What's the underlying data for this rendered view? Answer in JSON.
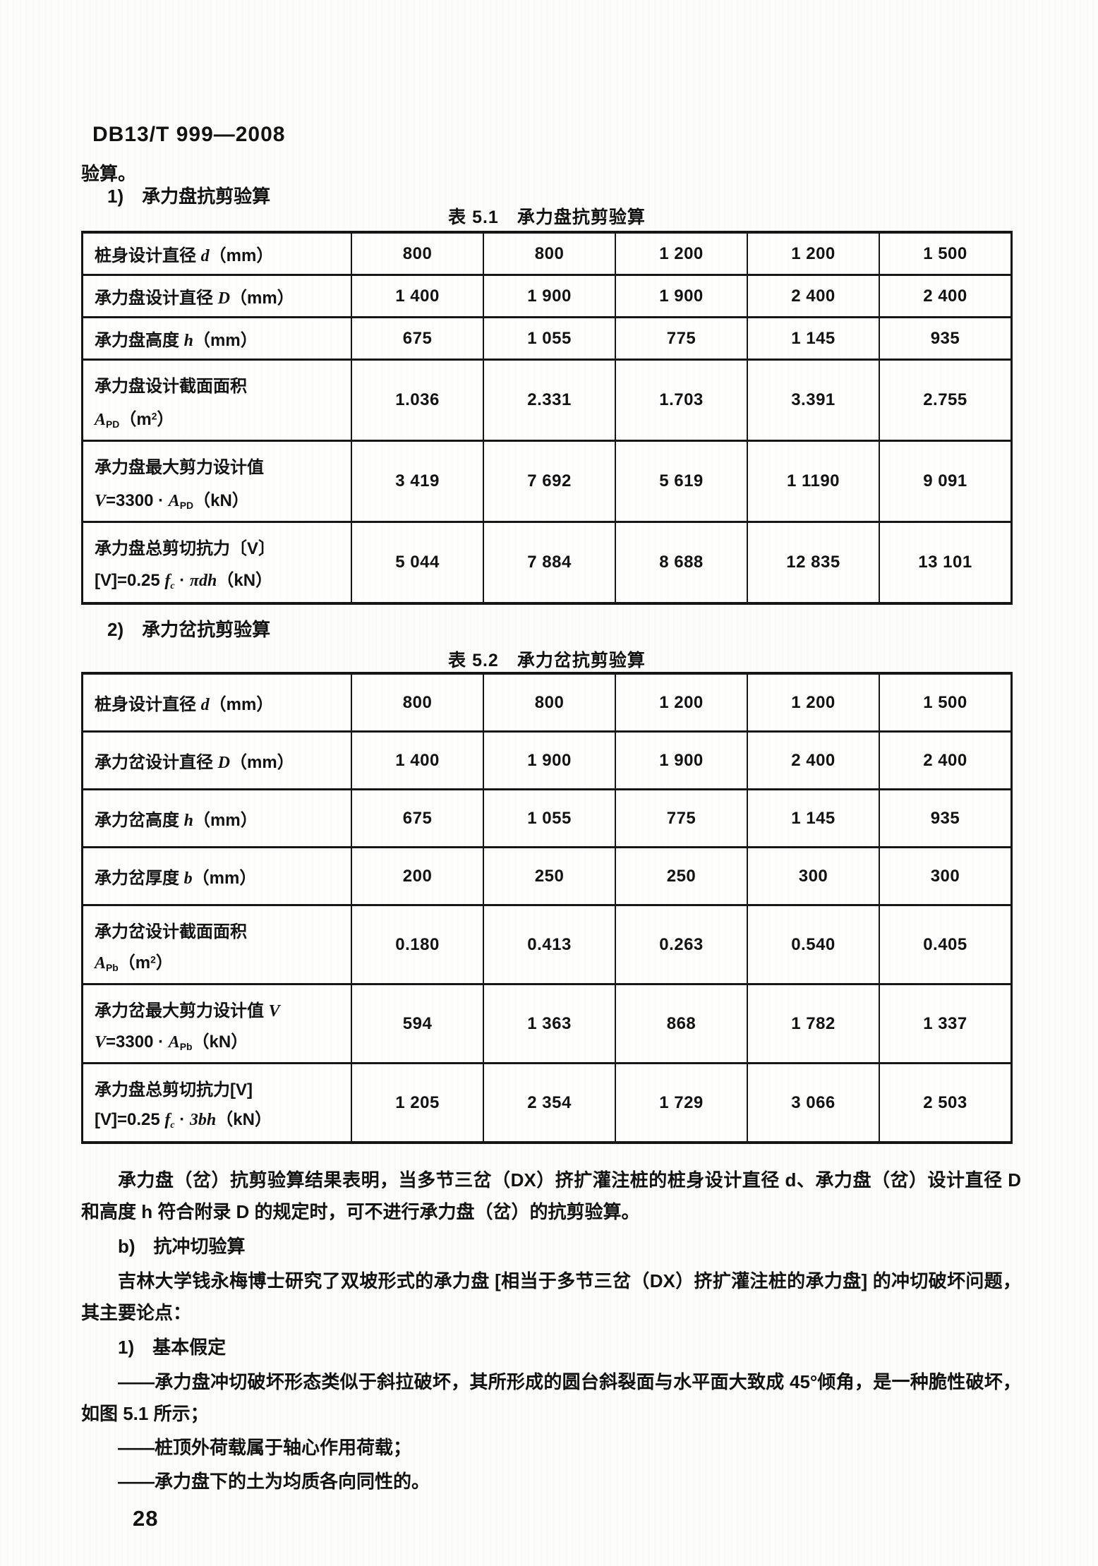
{
  "doc": {
    "header": "DB13/T 999—2008",
    "page_number": "28",
    "ink_color": "#121212",
    "paper_color": "#fdfdfc"
  },
  "body": {
    "lead": "验算。",
    "item1": "1)　承力盘抗剪验算",
    "item2": "2)　承力岔抗剪验算",
    "para_result": "承力盘（岔）抗剪验算结果表明，当多节三岔（DX）挤扩灌注桩的桩身设计直径 d、承力盘（岔）设计直径 D 和高度 h 符合附录 D 的规定时，可不进行承力盘（岔）的抗剪验算。",
    "sub_b": "b)　抗冲切验算",
    "para_jilin": "吉林大学钱永梅博士研究了双坡形式的承力盘 [相当于多节三岔（DX）挤扩灌注桩的承力盘] 的冲切破坏问题，其主要论点：",
    "sub_1": "1)　基本假定",
    "bullet_45": "——承力盘冲切破坏形态类似于斜拉破坏，其所形成的圆台斜裂面与水平面大致成 45°倾角，是一种脆性破坏，如图 5.1 所示；",
    "bullet_load": "——桩顶外荷载属于轴心作用荷载；",
    "bullet_soil": "——承力盘下的土为均质各向同性的。"
  },
  "tables": [
    {
      "caption": "表 5.1　承力盘抗剪验算",
      "rows": [
        {
          "label": [
            [
              [
                "桩身设计直径 ",
                "n"
              ],
              [
                "d",
                "i"
              ],
              [
                "（mm）",
                "n"
              ]
            ]
          ],
          "values": [
            "800",
            "800",
            "1 200",
            "1 200",
            "1 500"
          ]
        },
        {
          "label": [
            [
              [
                "承力盘设计直径 ",
                "n"
              ],
              [
                "D",
                "i"
              ],
              [
                "（mm）",
                "n"
              ]
            ]
          ],
          "values": [
            "1 400",
            "1 900",
            "1 900",
            "2 400",
            "2 400"
          ]
        },
        {
          "label": [
            [
              [
                "承力盘高度 ",
                "n"
              ],
              [
                "h",
                "i"
              ],
              [
                "（mm）",
                "n"
              ]
            ]
          ],
          "values": [
            "675",
            "1 055",
            "775",
            "1 145",
            "935"
          ]
        },
        {
          "label": [
            [
              [
                "承力盘设计截面面积",
                "n"
              ]
            ],
            [
              [
                "A",
                "i"
              ],
              [
                "PD",
                "sub"
              ],
              [
                "（m",
                "n"
              ],
              [
                "2",
                "sup"
              ],
              [
                "）",
                "n"
              ]
            ]
          ],
          "values": [
            "1.036",
            "2.331",
            "1.703",
            "3.391",
            "2.755"
          ]
        },
        {
          "label": [
            [
              [
                "承力盘最大剪力设计值",
                "n"
              ]
            ],
            [
              [
                "V",
                "i"
              ],
              [
                "=3300 · ",
                "n"
              ],
              [
                "A",
                "i"
              ],
              [
                "PD",
                "sub"
              ],
              [
                "（kN）",
                "n"
              ]
            ]
          ],
          "values": [
            "3 419",
            "7 692",
            "5 619",
            "1 1190",
            "9 091"
          ]
        },
        {
          "label": [
            [
              [
                "承力盘总剪切抗力〔V〕",
                "n"
              ]
            ],
            [
              [
                "[V]=0.25 ",
                "n"
              ],
              [
                "f",
                "i"
              ],
              [
                "c",
                "isub"
              ],
              [
                " · ",
                "n"
              ],
              [
                "πdh",
                "i"
              ],
              [
                "（kN）",
                "n"
              ]
            ]
          ],
          "values": [
            "5 044",
            "7 884",
            "8 688",
            "12 835",
            "13 101"
          ]
        }
      ]
    },
    {
      "caption": "表 5.2　承力岔抗剪验算",
      "rows": [
        {
          "label": [
            [
              [
                "桩身设计直径 ",
                "n"
              ],
              [
                "d",
                "i"
              ],
              [
                "（mm）",
                "n"
              ]
            ]
          ],
          "values": [
            "800",
            "800",
            "1 200",
            "1 200",
            "1 500"
          ]
        },
        {
          "label": [
            [
              [
                "承力岔设计直径 ",
                "n"
              ],
              [
                "D",
                "i"
              ],
              [
                "（mm）",
                "n"
              ]
            ]
          ],
          "values": [
            "1 400",
            "1 900",
            "1 900",
            "2 400",
            "2 400"
          ]
        },
        {
          "label": [
            [
              [
                "承力岔高度 ",
                "n"
              ],
              [
                "h",
                "i"
              ],
              [
                "（mm）",
                "n"
              ]
            ]
          ],
          "values": [
            "675",
            "1 055",
            "775",
            "1 145",
            "935"
          ]
        },
        {
          "label": [
            [
              [
                "承力岔厚度 ",
                "n"
              ],
              [
                "b",
                "i"
              ],
              [
                "（mm）",
                "n"
              ]
            ]
          ],
          "values": [
            "200",
            "250",
            "250",
            "300",
            "300"
          ]
        },
        {
          "label": [
            [
              [
                "承力岔设计截面面积",
                "n"
              ]
            ],
            [
              [
                "A",
                "i"
              ],
              [
                "Pb",
                "sub"
              ],
              [
                "（m",
                "n"
              ],
              [
                "2",
                "sup"
              ],
              [
                "）",
                "n"
              ]
            ]
          ],
          "values": [
            "0.180",
            "0.413",
            "0.263",
            "0.540",
            "0.405"
          ]
        },
        {
          "label": [
            [
              [
                "承力岔最大剪力设计值 ",
                "n"
              ],
              [
                "V",
                "i"
              ]
            ],
            [
              [
                "V",
                "i"
              ],
              [
                "=3300 · ",
                "n"
              ],
              [
                "A",
                "i"
              ],
              [
                "Pb",
                "sub"
              ],
              [
                "（kN）",
                "n"
              ]
            ]
          ],
          "values": [
            "594",
            "1 363",
            "868",
            "1 782",
            "1 337"
          ]
        },
        {
          "label": [
            [
              [
                "承力盘总剪切抗力[V]",
                "n"
              ]
            ],
            [
              [
                "[V]=0.25 ",
                "n"
              ],
              [
                "f",
                "i"
              ],
              [
                "c",
                "isub"
              ],
              [
                " · ",
                "n"
              ],
              [
                "3bh",
                "i"
              ],
              [
                "（kN）",
                "n"
              ]
            ]
          ],
          "values": [
            "1 205",
            "2 354",
            "1 729",
            "3 066",
            "2 503"
          ]
        }
      ]
    }
  ]
}
